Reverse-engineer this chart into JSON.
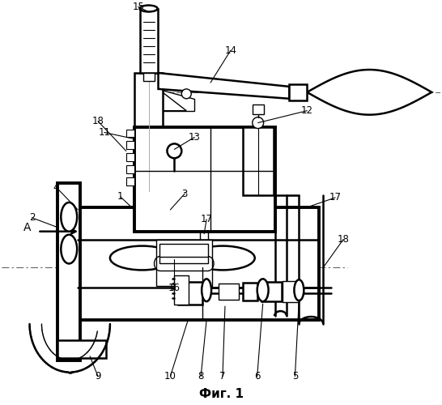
{
  "title": "Фиг. 1",
  "bg_color": "#ffffff",
  "line_color": "#000000",
  "fig_width": 5.46,
  "fig_height": 5.0,
  "dpi": 100
}
